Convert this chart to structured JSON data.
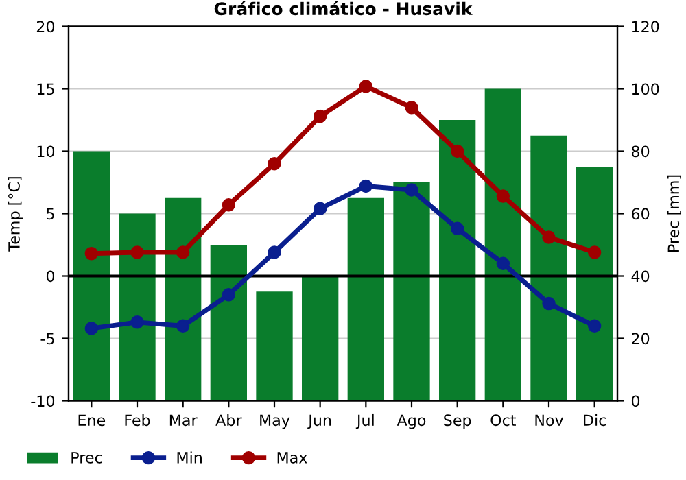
{
  "chart_data": {
    "type": "line",
    "title": "Gráfico climático - Husavik",
    "ylabel": "Temp [°C]",
    "y2label": "Prec [mm]",
    "categories": [
      "Ene",
      "Feb",
      "Mar",
      "Abr",
      "May",
      "Jun",
      "Jul",
      "Ago",
      "Sep",
      "Oct",
      "Nov",
      "Dic"
    ],
    "series": [
      {
        "name": "Prec",
        "type": "bar",
        "axis": "y2",
        "color": "#0a7d2c",
        "values": [
          80,
          60,
          65,
          50,
          35,
          40,
          65,
          70,
          90,
          100,
          85,
          75
        ]
      },
      {
        "name": "Min",
        "color": "#0a1f8f",
        "values": [
          -4.2,
          -3.7,
          -4.0,
          -1.5,
          1.9,
          5.4,
          7.2,
          6.9,
          3.8,
          1.0,
          -2.2,
          -4.0
        ]
      },
      {
        "name": "Max",
        "color": "#a00000",
        "values": [
          1.8,
          1.9,
          1.9,
          5.7,
          9.0,
          12.8,
          15.2,
          13.5,
          10.0,
          6.4,
          3.1,
          1.9
        ]
      }
    ],
    "ylim": [
      -10,
      20
    ],
    "yticks": [
      -10,
      -5,
      0,
      5,
      10,
      15,
      20
    ],
    "y2lim": [
      0,
      120
    ],
    "y2ticks": [
      0,
      20,
      40,
      60,
      80,
      100,
      120
    ],
    "ref_lines": [
      {
        "axis": "y",
        "value": 0,
        "color": "#000000"
      }
    ],
    "grid": "y",
    "legend": "bottom",
    "marker": "circle",
    "line_style": "solid"
  }
}
